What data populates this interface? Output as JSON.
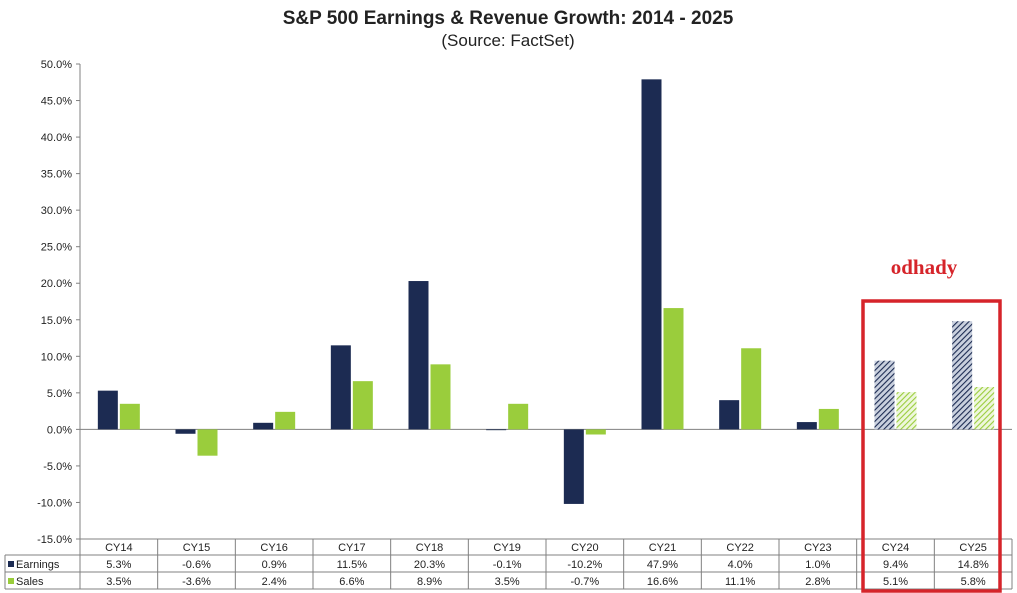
{
  "chart_data": {
    "type": "bar",
    "title": "S&P 500 Earnings & Revenue Growth:  2014 - 2025",
    "subtitle": "(Source: FactSet)",
    "categories": [
      "CY14",
      "CY15",
      "CY16",
      "CY17",
      "CY18",
      "CY19",
      "CY20",
      "CY21",
      "CY22",
      "CY23",
      "CY24",
      "CY25"
    ],
    "series": [
      {
        "name": "Earnings",
        "color": "#1c2b52",
        "values": [
          5.3,
          -0.6,
          0.9,
          11.5,
          20.3,
          -0.1,
          -10.2,
          47.9,
          4.0,
          1.0,
          9.4,
          14.8
        ],
        "labels": [
          "5.3%",
          "-0.6%",
          "0.9%",
          "11.5%",
          "20.3%",
          "-0.1%",
          "-10.2%",
          "47.9%",
          "4.0%",
          "1.0%",
          "9.4%",
          "14.8%"
        ]
      },
      {
        "name": "Sales",
        "color": "#9acd3c",
        "values": [
          3.5,
          -3.6,
          2.4,
          6.6,
          8.9,
          3.5,
          -0.7,
          16.6,
          11.1,
          2.8,
          5.1,
          5.8
        ],
        "labels": [
          "3.5%",
          "-3.6%",
          "2.4%",
          "6.6%",
          "8.9%",
          "3.5%",
          "-0.7%",
          "16.6%",
          "11.1%",
          "2.8%",
          "5.1%",
          "5.8%"
        ]
      }
    ],
    "estimate_categories": [
      "CY24",
      "CY25"
    ],
    "ylim": [
      -15,
      50
    ],
    "yticks": [
      -15,
      -10,
      -5,
      0,
      5,
      10,
      15,
      20,
      25,
      30,
      35,
      40,
      45,
      50
    ],
    "ytick_labels": [
      "-15.0%",
      "-10.0%",
      "-5.0%",
      "0.0%",
      "5.0%",
      "10.0%",
      "15.0%",
      "20.0%",
      "25.0%",
      "30.0%",
      "35.0%",
      "40.0%",
      "45.0%",
      "50.0%"
    ],
    "grid": false,
    "legend": "data-table",
    "annotation": {
      "text": "odhady",
      "color": "#d6242a"
    }
  }
}
